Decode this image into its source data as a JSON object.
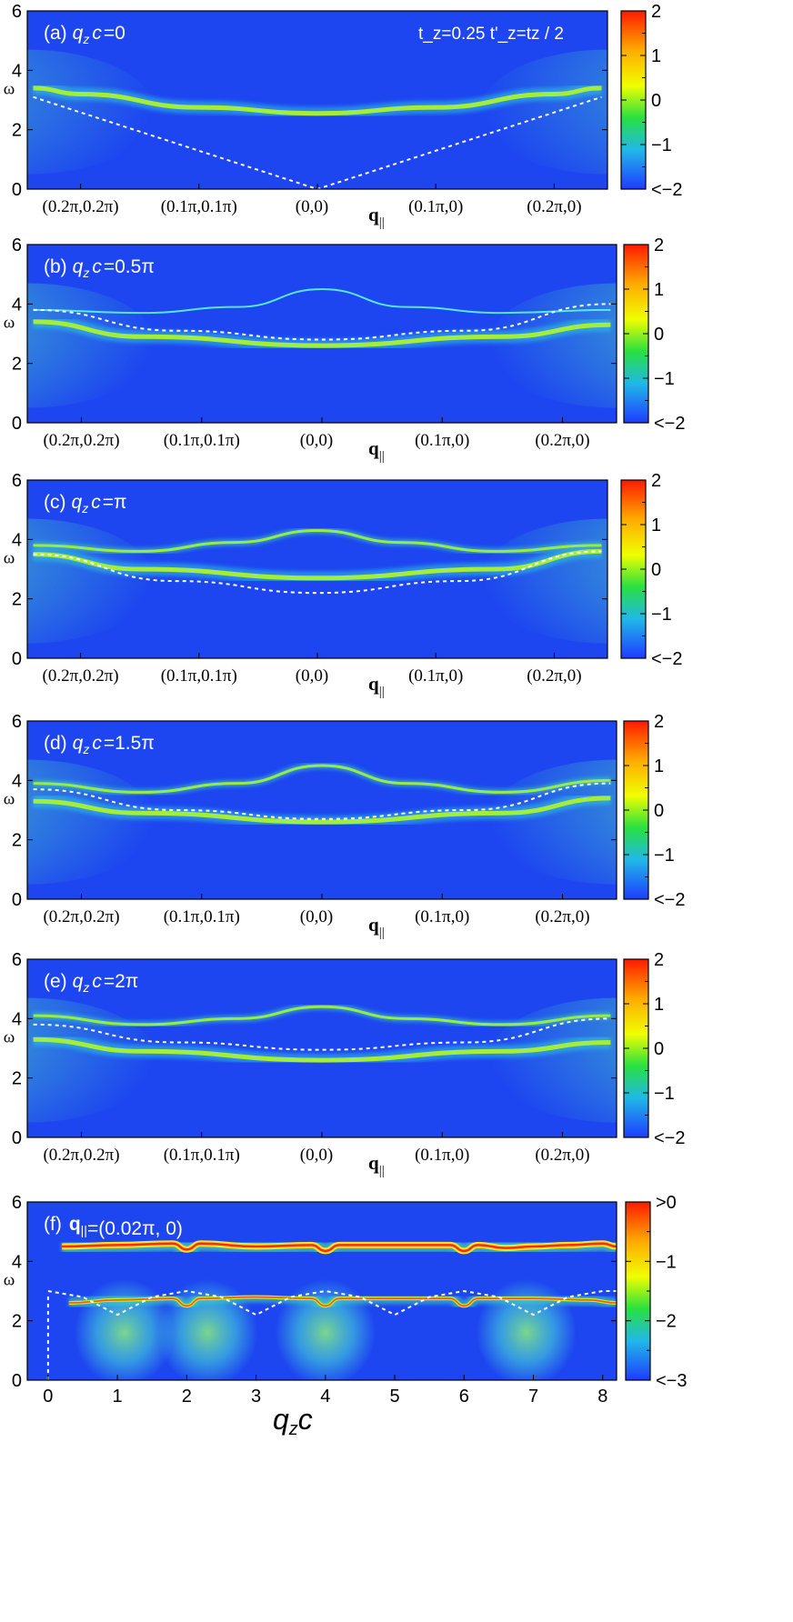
{
  "chart_data": [
    {
      "type": "heatmap",
      "panel_label": "(a)",
      "condition": "=0",
      "params": "t_z=0.25    t'_z=tz / 2",
      "ylabel": "ω",
      "xlabel": "q||",
      "yticks": [
        "0",
        "2",
        "4",
        "6"
      ],
      "ylim": [
        0,
        6
      ],
      "xtick_labels": [
        "(0.2π,0.2π)",
        "(0.1π,0.1π)",
        "(0,0)",
        "(0.1π,0)",
        "(0.2π,0)"
      ],
      "colorbar_ticks": [
        "2",
        "1",
        "0",
        "−1",
        "<−2"
      ],
      "branches": [
        {
          "kind": "band",
          "x": [
            -2.4,
            -2,
            -1,
            0,
            1,
            2,
            2.4
          ],
          "y": [
            3.4,
            3.2,
            2.75,
            2.55,
            2.75,
            3.2,
            3.4
          ]
        }
      ],
      "dashed": {
        "x": [
          -2.4,
          0,
          2.4
        ],
        "y": [
          3.1,
          0.0,
          3.1
        ]
      }
    },
    {
      "type": "heatmap",
      "panel_label": "(b)",
      "condition": "=0.5π",
      "ylabel": "ω",
      "xlabel": "q||",
      "yticks": [
        "0",
        "2",
        "4",
        "6"
      ],
      "ylim": [
        0,
        6
      ],
      "xtick_labels": [
        "(0.2π,0.2π)",
        "(0.1π,0.1π)",
        "(0,0)",
        "(0.1π,0)",
        "(0.2π,0)"
      ],
      "colorbar_ticks": [
        "2",
        "1",
        "0",
        "−1",
        "<−2"
      ],
      "branches": [
        {
          "kind": "thin",
          "x": [
            -2.4,
            -1.5,
            -0.7,
            0,
            0.7,
            1.5,
            2.4
          ],
          "y": [
            3.8,
            3.7,
            3.9,
            4.5,
            3.9,
            3.7,
            3.8
          ]
        },
        {
          "kind": "band",
          "x": [
            -2.4,
            -1.5,
            0,
            1.5,
            2.4
          ],
          "y": [
            3.4,
            2.9,
            2.6,
            2.9,
            3.3
          ]
        }
      ],
      "dashed": {
        "x": [
          -2.4,
          -1.2,
          0,
          1.2,
          2.4
        ],
        "y": [
          3.8,
          3.1,
          2.8,
          3.1,
          4.0
        ]
      }
    },
    {
      "type": "heatmap",
      "panel_label": "(c)",
      "condition": "=π",
      "ylabel": "ω",
      "xlabel": "q||",
      "yticks": [
        "0",
        "2",
        "4",
        "6"
      ],
      "ylim": [
        0,
        6
      ],
      "xtick_labels": [
        "(0.2π,0.2π)",
        "(0.1π,0.1π)",
        "(0,0)",
        "(0.1π,0)",
        "(0.2π,0)"
      ],
      "colorbar_ticks": [
        "2",
        "1",
        "0",
        "−1",
        "<−2"
      ],
      "branches": [
        {
          "kind": "line",
          "x": [
            -2.4,
            -1.5,
            -0.7,
            0,
            0.7,
            1.5,
            2.4
          ],
          "y": [
            3.8,
            3.6,
            3.9,
            4.3,
            3.9,
            3.6,
            3.8
          ]
        },
        {
          "kind": "band",
          "x": [
            -2.4,
            -1.5,
            0,
            1.5,
            2.4
          ],
          "y": [
            3.5,
            3.0,
            2.7,
            3.0,
            3.6
          ]
        }
      ],
      "dashed": {
        "x": [
          -2.4,
          -1.2,
          0,
          1.2,
          2.4
        ],
        "y": [
          3.5,
          2.6,
          2.2,
          2.6,
          3.6
        ]
      }
    },
    {
      "type": "heatmap",
      "panel_label": "(d)",
      "condition": "=1.5π",
      "ylabel": "ω",
      "xlabel": "q||",
      "yticks": [
        "0",
        "2",
        "4",
        "6"
      ],
      "ylim": [
        0,
        6
      ],
      "xtick_labels": [
        "(0.2π,0.2π)",
        "(0.1π,0.1π)",
        "(0,0)",
        "(0.1π,0)",
        "(0.2π,0)"
      ],
      "colorbar_ticks": [
        "2",
        "1",
        "0",
        "−1",
        "<−2"
      ],
      "branches": [
        {
          "kind": "line",
          "x": [
            -2.4,
            -1.5,
            -0.7,
            0,
            0.7,
            1.5,
            2.4
          ],
          "y": [
            3.9,
            3.6,
            3.9,
            4.5,
            3.9,
            3.6,
            4.0
          ]
        },
        {
          "kind": "band",
          "x": [
            -2.4,
            -1.5,
            0,
            1.5,
            2.4
          ],
          "y": [
            3.3,
            2.9,
            2.6,
            2.9,
            3.4
          ]
        }
      ],
      "dashed": {
        "x": [
          -2.4,
          -1.2,
          0,
          1.2,
          2.4
        ],
        "y": [
          3.7,
          3.0,
          2.7,
          3.0,
          3.9
        ]
      }
    },
    {
      "type": "heatmap",
      "panel_label": "(e)",
      "condition": "=2π",
      "ylabel": "ω",
      "xlabel": "q||",
      "yticks": [
        "0",
        "2",
        "4",
        "6"
      ],
      "ylim": [
        0,
        6
      ],
      "xtick_labels": [
        "(0.2π,0.2π)",
        "(0.1π,0.1π)",
        "(0,0)",
        "(0.1π,0)",
        "(0.2π,0)"
      ],
      "colorbar_ticks": [
        "2",
        "1",
        "0",
        "−1",
        "<−2"
      ],
      "branches": [
        {
          "kind": "line",
          "x": [
            -2.4,
            -1.5,
            -0.7,
            0,
            0.7,
            1.5,
            2.4
          ],
          "y": [
            4.1,
            3.8,
            4.0,
            4.4,
            4.0,
            3.8,
            4.1
          ]
        },
        {
          "kind": "band",
          "x": [
            -2.4,
            -1.5,
            0,
            1.5,
            2.4
          ],
          "y": [
            3.3,
            2.9,
            2.6,
            2.9,
            3.2
          ]
        }
      ],
      "dashed": {
        "x": [
          -2.4,
          -1.2,
          0,
          1.2,
          2.4
        ],
        "y": [
          3.8,
          3.2,
          2.95,
          3.2,
          4.0
        ]
      }
    },
    {
      "type": "heatmap",
      "panel_label": "(f)",
      "condition": "=(0.02π, 0)",
      "ylabel": "ω",
      "xlabel": "q_z c",
      "yticks": [
        "0",
        "2",
        "4",
        "6"
      ],
      "ylim": [
        0,
        6
      ],
      "xlim": [
        -0.3,
        8.2
      ],
      "xticks": [
        0,
        1,
        2,
        3,
        4,
        5,
        6,
        7,
        8
      ],
      "colorbar_ticks": [
        ">0",
        "−1",
        "−2",
        "<−3"
      ],
      "branches": [
        {
          "kind": "red",
          "x": [
            0.2,
            1,
            1.8,
            2.0,
            2.2,
            3,
            3.8,
            4.0,
            4.2,
            5,
            5.8,
            6.0,
            6.2,
            6.6,
            7.0,
            7.5,
            8.0,
            8.2
          ],
          "y": [
            4.5,
            4.55,
            4.6,
            4.4,
            4.6,
            4.5,
            4.55,
            4.35,
            4.55,
            4.55,
            4.55,
            4.35,
            4.55,
            4.45,
            4.5,
            4.55,
            4.6,
            4.5
          ]
        },
        {
          "kind": "lower",
          "x": [
            0.3,
            1,
            1.8,
            2.0,
            2.2,
            3,
            3.8,
            4.0,
            4.2,
            5,
            5.8,
            6.0,
            6.2,
            7,
            7.8,
            8.2
          ],
          "y": [
            2.6,
            2.7,
            2.75,
            2.5,
            2.75,
            2.8,
            2.75,
            2.5,
            2.75,
            2.75,
            2.75,
            2.5,
            2.75,
            2.75,
            2.7,
            2.6
          ]
        }
      ],
      "dashed": {
        "x": [
          0.0,
          0.5,
          1.0,
          1.5,
          2.0,
          2.5,
          3.0,
          3.5,
          4.0,
          4.5,
          5.0,
          5.5,
          6.0,
          6.5,
          7.0,
          7.5,
          8.0,
          8.2
        ],
        "y": [
          3.0,
          2.8,
          2.2,
          2.8,
          3.0,
          2.8,
          2.2,
          2.8,
          3.0,
          2.8,
          2.2,
          2.8,
          3.0,
          2.8,
          2.2,
          2.8,
          3.0,
          3.0
        ]
      }
    }
  ]
}
